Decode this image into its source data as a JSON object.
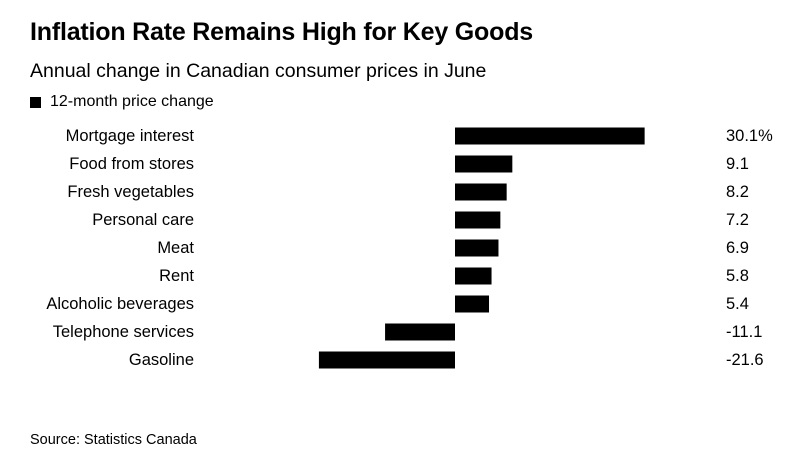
{
  "chart_data": {
    "type": "bar",
    "orientation": "horizontal",
    "title": "Inflation Rate Remains High for Key Goods",
    "subtitle": "Annual change in Canadian consumer prices in June",
    "categories": [
      "Mortgage interest",
      "Food from stores",
      "Fresh vegetables",
      "Personal care",
      "Meat",
      "Rent",
      "Alcoholic beverages",
      "Telephone services",
      "Gasoline"
    ],
    "value_labels": [
      "30.1%",
      "9.1",
      "8.2",
      "7.2",
      "6.9",
      "5.8",
      "5.4",
      "-11.1",
      "-21.6"
    ],
    "series": [
      {
        "name": "12-month price change",
        "values": [
          30.1,
          9.1,
          8.2,
          7.2,
          6.9,
          5.8,
          5.4,
          -11.1,
          -21.6
        ],
        "color": "#000000"
      }
    ],
    "source": "Source: Statistics Canada",
    "legend_position": "top-left",
    "grid": false
  }
}
